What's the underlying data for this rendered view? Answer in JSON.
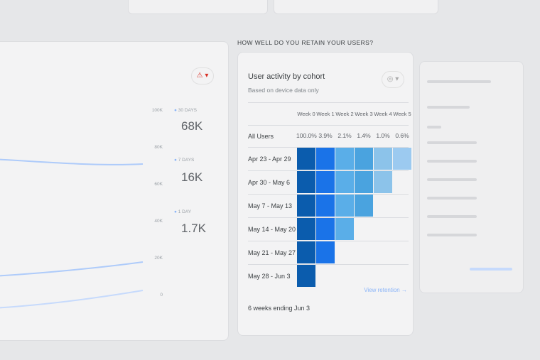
{
  "section_title": "HOW WELL DO YOU RETAIN YOUR USERS?",
  "activity_card": {
    "legend": [
      {
        "label": "30 DAYS",
        "value": "68K"
      },
      {
        "label": "7 DAYS",
        "value": "16K"
      },
      {
        "label": "1 DAY",
        "value": "1.7K"
      }
    ],
    "y_ticks": [
      "100K",
      "80K",
      "60K",
      "40K",
      "20K",
      "0"
    ],
    "series_color": "#8ab4f8",
    "alert_icon": "warning-triangle-icon"
  },
  "cohort_card": {
    "title": "User activity by cohort",
    "subtitle": "Based on device data only",
    "columns": [
      "Week 0",
      "Week 1",
      "Week 2",
      "Week 3",
      "Week 4",
      "Week 5"
    ],
    "all_users": {
      "label": "All Users",
      "values": [
        "100.0%",
        "3.9%",
        "2.1%",
        "1.4%",
        "1.0%",
        "0.6%"
      ]
    },
    "rows": [
      {
        "label": "Apr 23 - Apr 29",
        "weeks": 6
      },
      {
        "label": "Apr 30 - May 6",
        "weeks": 5
      },
      {
        "label": "May 7 - May 13",
        "weeks": 4
      },
      {
        "label": "May 14 - May 20",
        "weeks": 3
      },
      {
        "label": "May 21 - May 27",
        "weeks": 2
      },
      {
        "label": "May 28 - Jun 3",
        "weeks": 1
      }
    ],
    "cell_colors": [
      "#0b5cad",
      "#1a73e8",
      "#5aaee8",
      "#4aa3df",
      "#8cc3ea",
      "#9ccaf0"
    ],
    "footer": "6 weeks ending Jun 3",
    "link": "View retention"
  }
}
